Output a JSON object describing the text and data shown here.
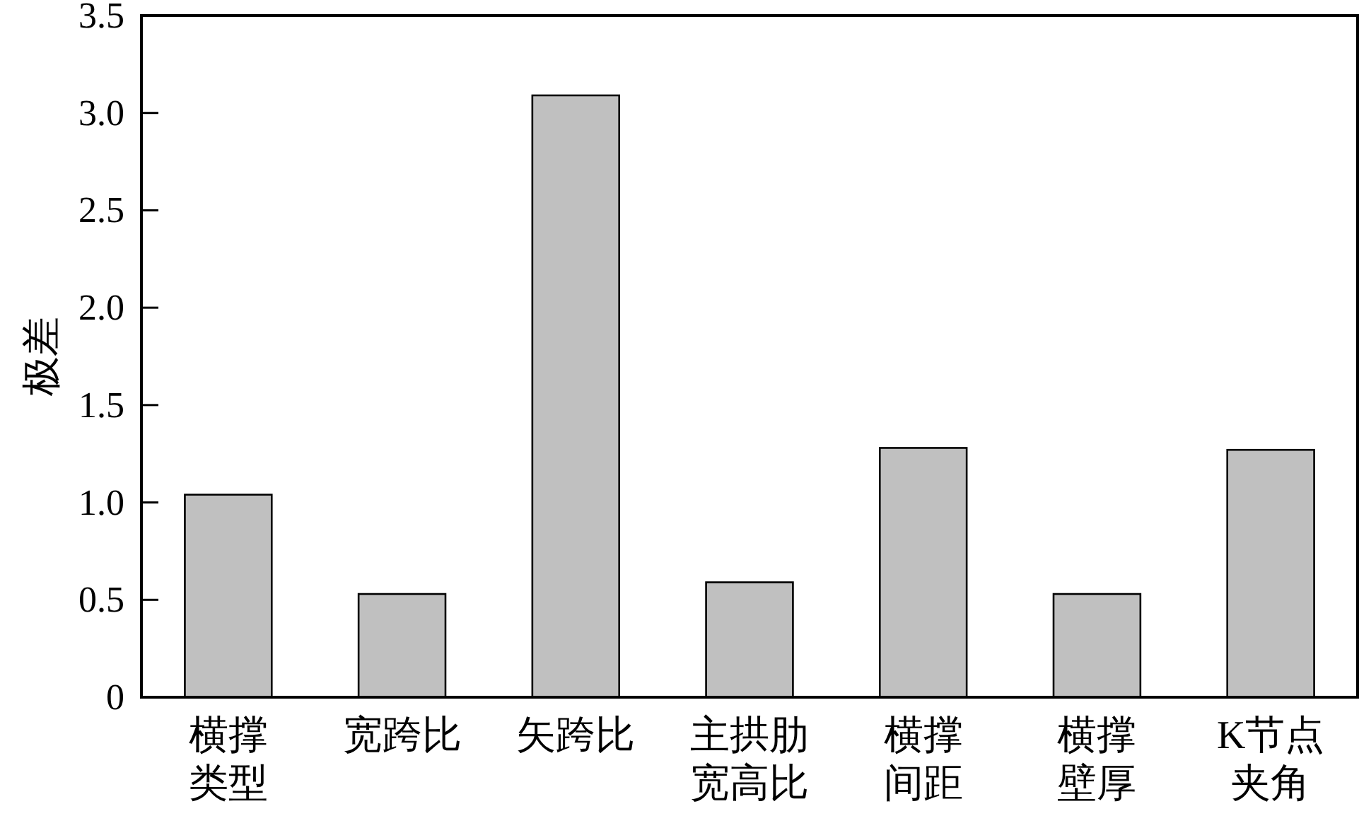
{
  "chart_data": {
    "type": "bar",
    "ylabel": "极差",
    "categories": [
      "横撑类型",
      "宽跨比",
      "矢跨比",
      "主拱肋宽高比",
      "横撑间距",
      "横撑壁厚",
      "K节点夹角"
    ],
    "values": [
      1.04,
      0.53,
      3.09,
      0.59,
      1.28,
      0.53,
      1.27
    ],
    "color": "#c0c0c0",
    "ylim": [
      0,
      3.5
    ],
    "yticks": [
      0,
      0.5,
      {
        "value": 1,
        "label": "1.0"
      },
      1.5,
      {
        "value": 2,
        "label": "2.0"
      },
      2.5,
      {
        "value": 3,
        "label": "3.0"
      },
      3.5
    ],
    "grid": false
  }
}
